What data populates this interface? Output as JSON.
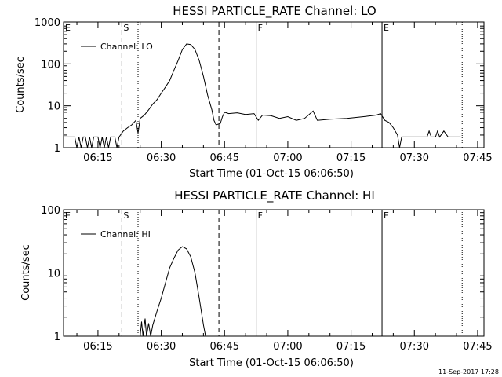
{
  "chart_data": [
    {
      "type": "line",
      "title": "HESSI PARTICLE_RATE Channel: LO",
      "xlabel": "Start Time (01-Oct-15 06:06:50)",
      "ylabel": "Counts/sec",
      "yscale": "log",
      "ylim": [
        1,
        1000
      ],
      "xlim": [
        "06:06:50",
        "07:46:30"
      ],
      "x_ticks": [
        "06:15",
        "06:30",
        "06:45",
        "07:00",
        "07:15",
        "07:30",
        "07:45"
      ],
      "y_ticks": [
        "1",
        "10",
        "100",
        "1000"
      ],
      "legend": {
        "label": "Channel: LO",
        "placement": "top-left"
      },
      "markers": [
        {
          "label": "E",
          "time": "06:06:50",
          "style": "dashed"
        },
        {
          "label": "S",
          "time": "06:20:40",
          "style": "dashed"
        },
        {
          "label": "",
          "time": "06:24:30",
          "style": "dotted"
        },
        {
          "label": "",
          "time": "06:43:40",
          "style": "dashed"
        },
        {
          "label": "F",
          "time": "06:52:30",
          "style": "solid"
        },
        {
          "label": "E",
          "time": "07:22:20",
          "style": "solid"
        },
        {
          "label": "",
          "time": "07:41:20",
          "style": "dotted"
        }
      ],
      "series": [
        {
          "name": "Channel: LO",
          "points": [
            [
              "06:06:50",
              1.8
            ],
            [
              "06:09:30",
              1.8
            ],
            [
              "06:10:00",
              1.0
            ],
            [
              "06:10:30",
              1.8
            ],
            [
              "06:11:00",
              1.0
            ],
            [
              "06:11:30",
              1.8
            ],
            [
              "06:12:00",
              1.8
            ],
            [
              "06:12:30",
              1.0
            ],
            [
              "06:13:00",
              1.8
            ],
            [
              "06:13:30",
              1.0
            ],
            [
              "06:14:00",
              1.8
            ],
            [
              "06:15:00",
              1.8
            ],
            [
              "06:15:30",
              1.0
            ],
            [
              "06:16:00",
              1.8
            ],
            [
              "06:16:30",
              1.0
            ],
            [
              "06:17:00",
              1.8
            ],
            [
              "06:17:30",
              1.0
            ],
            [
              "06:18:00",
              1.8
            ],
            [
              "06:19:00",
              1.8
            ],
            [
              "06:19:30",
              1.0
            ],
            [
              "06:20:00",
              1.8
            ],
            [
              "06:21:00",
              2.5
            ],
            [
              "06:22:00",
              3.0
            ],
            [
              "06:23:00",
              3.5
            ],
            [
              "06:24:00",
              4.5
            ],
            [
              "06:24:30",
              2.2
            ],
            [
              "06:25:00",
              5.0
            ],
            [
              "06:26:00",
              6.0
            ],
            [
              "06:27:00",
              8.0
            ],
            [
              "06:28:00",
              11
            ],
            [
              "06:29:00",
              14
            ],
            [
              "06:30:00",
              20
            ],
            [
              "06:31:00",
              28
            ],
            [
              "06:32:00",
              40
            ],
            [
              "06:33:00",
              70
            ],
            [
              "06:34:00",
              120
            ],
            [
              "06:35:00",
              220
            ],
            [
              "06:36:00",
              300
            ],
            [
              "06:37:00",
              290
            ],
            [
              "06:38:00",
              220
            ],
            [
              "06:39:00",
              120
            ],
            [
              "06:40:00",
              50
            ],
            [
              "06:41:00",
              18
            ],
            [
              "06:42:00",
              8
            ],
            [
              "06:42:30",
              4.5
            ],
            [
              "06:43:00",
              3.5
            ],
            [
              "06:44:00",
              3.8
            ],
            [
              "06:44:30",
              5.5
            ],
            [
              "06:45:00",
              7.0
            ],
            [
              "06:46:00",
              6.5
            ],
            [
              "06:48:00",
              6.8
            ],
            [
              "06:50:00",
              6.2
            ],
            [
              "06:52:00",
              6.5
            ],
            [
              "06:53:00",
              4.5
            ],
            [
              "06:54:00",
              6.0
            ],
            [
              "06:56:00",
              5.8
            ],
            [
              "06:58:00",
              5.0
            ],
            [
              "07:00:00",
              5.5
            ],
            [
              "07:02:00",
              4.5
            ],
            [
              "07:04:00",
              5.0
            ],
            [
              "07:06:00",
              7.5
            ],
            [
              "07:07:00",
              4.5
            ],
            [
              "07:10:00",
              4.8
            ],
            [
              "07:14:00",
              5.0
            ],
            [
              "07:18:00",
              5.5
            ],
            [
              "07:21:00",
              6.0
            ],
            [
              "07:22:00",
              6.5
            ],
            [
              "07:23:00",
              4.5
            ],
            [
              "07:24:00",
              4.0
            ],
            [
              "07:25:00",
              3.0
            ],
            [
              "07:26:00",
              2.0
            ],
            [
              "07:26:30",
              1.0
            ],
            [
              "07:27:00",
              1.8
            ],
            [
              "07:33:00",
              1.8
            ],
            [
              "07:33:30",
              2.5
            ],
            [
              "07:34:00",
              1.8
            ],
            [
              "07:35:00",
              1.8
            ],
            [
              "07:35:30",
              2.5
            ],
            [
              "07:36:00",
              1.8
            ],
            [
              "07:37:00",
              2.5
            ],
            [
              "07:38:00",
              1.8
            ],
            [
              "07:41:00",
              1.8
            ]
          ]
        }
      ]
    },
    {
      "type": "line",
      "title": "HESSI PARTICLE_RATE Channel: HI",
      "xlabel": "Start Time (01-Oct-15 06:06:50)",
      "ylabel": "Counts/sec",
      "yscale": "log",
      "ylim": [
        1,
        100
      ],
      "xlim": [
        "06:06:50",
        "07:46:30"
      ],
      "x_ticks": [
        "06:15",
        "06:30",
        "06:45",
        "07:00",
        "07:15",
        "07:30",
        "07:45"
      ],
      "y_ticks": [
        "1",
        "10",
        "100"
      ],
      "legend": {
        "label": "Channel: HI",
        "placement": "top-left"
      },
      "markers": [
        {
          "label": "E",
          "time": "06:06:50",
          "style": "dashed"
        },
        {
          "label": "S",
          "time": "06:20:40",
          "style": "dashed"
        },
        {
          "label": "",
          "time": "06:24:30",
          "style": "dotted"
        },
        {
          "label": "",
          "time": "06:43:40",
          "style": "dashed"
        },
        {
          "label": "F",
          "time": "06:52:30",
          "style": "solid"
        },
        {
          "label": "E",
          "time": "07:22:20",
          "style": "solid"
        },
        {
          "label": "",
          "time": "07:41:20",
          "style": "dotted"
        }
      ],
      "series": [
        {
          "name": "Channel: HI",
          "points": [
            [
              "06:25:00",
              1.0
            ],
            [
              "06:25:20",
              1.7
            ],
            [
              "06:25:40",
              1.0
            ],
            [
              "06:26:10",
              1.9
            ],
            [
              "06:26:30",
              1.0
            ],
            [
              "06:27:00",
              1.6
            ],
            [
              "06:27:30",
              1.0
            ],
            [
              "06:28:00",
              1.5
            ],
            [
              "06:29:00",
              2.5
            ],
            [
              "06:30:00",
              4.0
            ],
            [
              "06:31:00",
              7.0
            ],
            [
              "06:32:00",
              12
            ],
            [
              "06:33:00",
              17
            ],
            [
              "06:34:00",
              23
            ],
            [
              "06:35:00",
              26
            ],
            [
              "06:36:00",
              24
            ],
            [
              "06:37:00",
              18
            ],
            [
              "06:38:00",
              10
            ],
            [
              "06:39:00",
              4.0
            ],
            [
              "06:40:00",
              1.5
            ],
            [
              "06:40:30",
              1.0
            ]
          ]
        }
      ]
    }
  ],
  "footer": {
    "timestamp": "11-Sep-2017 17:28"
  }
}
